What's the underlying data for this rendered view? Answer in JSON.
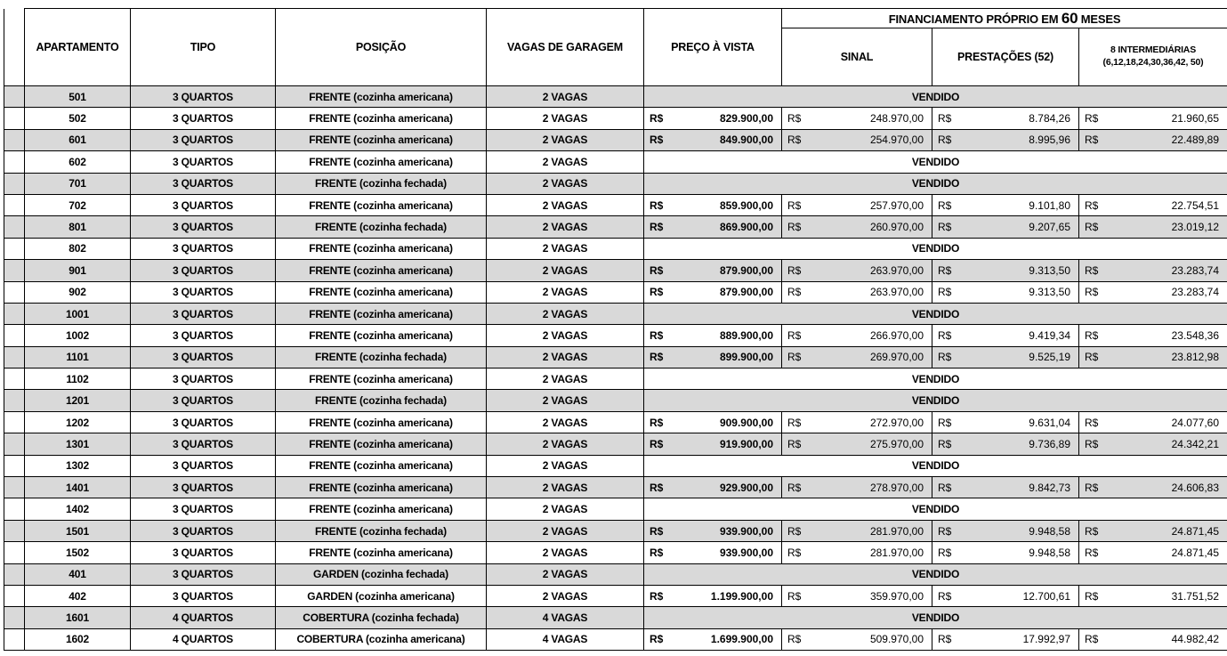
{
  "table": {
    "currency_symbol": "R$",
    "sold_label": "VENDIDO",
    "colors": {
      "stripe": "#d9d9d9",
      "border": "#000000",
      "background": "#ffffff"
    },
    "headers": {
      "apartamento": "APARTAMENTO",
      "tipo": "TIPO",
      "posicao": "POSIÇÃO",
      "vagas": "VAGAS DE GARAGEM",
      "preco": "PREÇO À VISTA",
      "financiamento_prefix": "FINANCIAMENTO PRÓPRIO EM",
      "financiamento_number": "60",
      "financiamento_suffix": "MESES",
      "sinal": "SINAL",
      "prestacoes": "PRESTAÇÕES (52)",
      "intermediarias_line1": "8 INTERMEDIÁRIAS",
      "intermediarias_line2": "(6,12,18,24,30,36,42, 50)"
    },
    "rows": [
      {
        "apartamento": "501",
        "tipo": "3 QUARTOS",
        "posicao": "FRENTE (cozinha americana)",
        "vagas": "2 VAGAS",
        "vendido": true
      },
      {
        "apartamento": "502",
        "tipo": "3 QUARTOS",
        "posicao": "FRENTE (cozinha americana)",
        "vagas": "2 VAGAS",
        "vendido": false,
        "preco": "829.900,00",
        "sinal": "248.970,00",
        "prestacoes": "8.784,26",
        "intermediarias": "21.960,65"
      },
      {
        "apartamento": "601",
        "tipo": "3 QUARTOS",
        "posicao": "FRENTE (cozinha americana)",
        "vagas": "2 VAGAS",
        "vendido": false,
        "preco": "849.900,00",
        "sinal": "254.970,00",
        "prestacoes": "8.995,96",
        "intermediarias": "22.489,89"
      },
      {
        "apartamento": "602",
        "tipo": "3 QUARTOS",
        "posicao": "FRENTE (cozinha americana)",
        "vagas": "2 VAGAS",
        "vendido": true
      },
      {
        "apartamento": "701",
        "tipo": "3 QUARTOS",
        "posicao": "FRENTE  (cozinha fechada)",
        "vagas": "2 VAGAS",
        "vendido": true
      },
      {
        "apartamento": "702",
        "tipo": "3 QUARTOS",
        "posicao": "FRENTE (cozinha americana)",
        "vagas": "2 VAGAS",
        "vendido": false,
        "preco": "859.900,00",
        "sinal": "257.970,00",
        "prestacoes": "9.101,80",
        "intermediarias": "22.754,51"
      },
      {
        "apartamento": "801",
        "tipo": "3 QUARTOS",
        "posicao": "FRENTE (cozinha fechada)",
        "vagas": "2 VAGAS",
        "vendido": false,
        "preco": "869.900,00",
        "sinal": "260.970,00",
        "prestacoes": "9.207,65",
        "intermediarias": "23.019,12"
      },
      {
        "apartamento": "802",
        "tipo": "3 QUARTOS",
        "posicao": "FRENTE (cozinha americana)",
        "vagas": "2 VAGAS",
        "vendido": true
      },
      {
        "apartamento": "901",
        "tipo": "3 QUARTOS",
        "posicao": "FRENTE (cozinha americana)",
        "vagas": "2 VAGAS",
        "vendido": false,
        "preco": "879.900,00",
        "sinal": "263.970,00",
        "prestacoes": "9.313,50",
        "intermediarias": "23.283,74"
      },
      {
        "apartamento": "902",
        "tipo": "3 QUARTOS",
        "posicao": "FRENTE (cozinha americana)",
        "vagas": "2 VAGAS",
        "vendido": false,
        "preco": "879.900,00",
        "sinal": "263.970,00",
        "prestacoes": "9.313,50",
        "intermediarias": "23.283,74"
      },
      {
        "apartamento": "1001",
        "tipo": "3 QUARTOS",
        "posicao": "FRENTE (cozinha americana)",
        "vagas": "2 VAGAS",
        "vendido": true
      },
      {
        "apartamento": "1002",
        "tipo": "3 QUARTOS",
        "posicao": "FRENTE (cozinha americana)",
        "vagas": "2 VAGAS",
        "vendido": false,
        "preco": "889.900,00",
        "sinal": "266.970,00",
        "prestacoes": "9.419,34",
        "intermediarias": "23.548,36"
      },
      {
        "apartamento": "1101",
        "tipo": "3 QUARTOS",
        "posicao": "FRENTE (cozinha fechada)",
        "vagas": "2 VAGAS",
        "vendido": false,
        "preco": "899.900,00",
        "sinal": "269.970,00",
        "prestacoes": "9.525,19",
        "intermediarias": "23.812,98"
      },
      {
        "apartamento": "1102",
        "tipo": "3 QUARTOS",
        "posicao": "FRENTE (cozinha americana)",
        "vagas": "2 VAGAS",
        "vendido": true
      },
      {
        "apartamento": "1201",
        "tipo": "3 QUARTOS",
        "posicao": "FRENTE (cozinha fechada)",
        "vagas": "2 VAGAS",
        "vendido": true
      },
      {
        "apartamento": "1202",
        "tipo": "3 QUARTOS",
        "posicao": "FRENTE (cozinha americana)",
        "vagas": "2 VAGAS",
        "vendido": false,
        "preco": "909.900,00",
        "sinal": "272.970,00",
        "prestacoes": "9.631,04",
        "intermediarias": "24.077,60"
      },
      {
        "apartamento": "1301",
        "tipo": "3 QUARTOS",
        "posicao": "FRENTE (cozinha americana)",
        "vagas": "2 VAGAS",
        "vendido": false,
        "preco": "919.900,00",
        "sinal": "275.970,00",
        "prestacoes": "9.736,89",
        "intermediarias": "24.342,21"
      },
      {
        "apartamento": "1302",
        "tipo": "3 QUARTOS",
        "posicao": "FRENTE (cozinha americana)",
        "vagas": "2 VAGAS",
        "vendido": true
      },
      {
        "apartamento": "1401",
        "tipo": "3 QUARTOS",
        "posicao": "FRENTE (cozinha americana)",
        "vagas": "2 VAGAS",
        "vendido": false,
        "preco": "929.900,00",
        "sinal": "278.970,00",
        "prestacoes": "9.842,73",
        "intermediarias": "24.606,83"
      },
      {
        "apartamento": "1402",
        "tipo": "3 QUARTOS",
        "posicao": "FRENTE (cozinha americana)",
        "vagas": "2 VAGAS",
        "vendido": true
      },
      {
        "apartamento": "1501",
        "tipo": "3 QUARTOS",
        "posicao": "FRENTE (cozinha fechada)",
        "vagas": "2 VAGAS",
        "vendido": false,
        "preco": "939.900,00",
        "sinal": "281.970,00",
        "prestacoes": "9.948,58",
        "intermediarias": "24.871,45"
      },
      {
        "apartamento": "1502",
        "tipo": "3 QUARTOS",
        "posicao": "FRENTE (cozinha americana)",
        "vagas": "2 VAGAS",
        "vendido": false,
        "preco": "939.900,00",
        "sinal": "281.970,00",
        "prestacoes": "9.948,58",
        "intermediarias": "24.871,45"
      },
      {
        "apartamento": "401",
        "tipo": "3 QUARTOS",
        "posicao": "GARDEN (cozinha fechada)",
        "vagas": "2 VAGAS",
        "vendido": true
      },
      {
        "apartamento": "402",
        "tipo": "3 QUARTOS",
        "posicao": "GARDEN (cozinha americana)",
        "vagas": "2 VAGAS",
        "vendido": false,
        "preco": "1.199.900,00",
        "sinal": "359.970,00",
        "prestacoes": "12.700,61",
        "intermediarias": "31.751,52"
      },
      {
        "apartamento": "1601",
        "tipo": "4 QUARTOS",
        "posicao": "COBERTURA (cozinha fechada)",
        "vagas": "4 VAGAS",
        "vendido": true
      },
      {
        "apartamento": "1602",
        "tipo": "4 QUARTOS",
        "posicao": "COBERTURA (cozinha americana)",
        "vagas": "4 VAGAS",
        "vendido": false,
        "preco": "1.699.900,00",
        "sinal": "509.970,00",
        "prestacoes": "17.992,97",
        "intermediarias": "44.982,42"
      }
    ]
  }
}
